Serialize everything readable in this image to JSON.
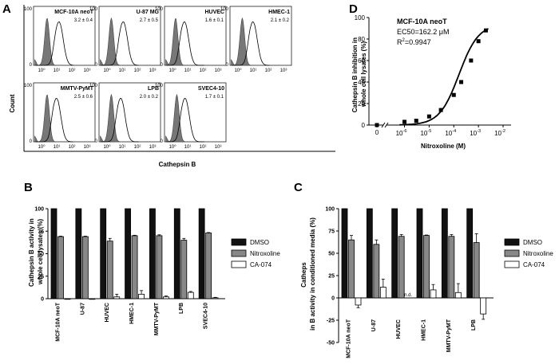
{
  "panels": {
    "A": "A",
    "B": "B",
    "C": "C",
    "D": "D"
  },
  "panel_a": {
    "ylabel": "Count",
    "xlabel": "Cathepsin B",
    "cells": [
      {
        "name": "MCF-10A neoT",
        "value": "3.2 ± 0.4"
      },
      {
        "name": "U-87 MG",
        "value": "2.7 ± 0.5"
      },
      {
        "name": "HUVEC",
        "value": "1.6 ± 0.1"
      },
      {
        "name": "HMEC-1",
        "value": "2.1 ± 0.2"
      },
      {
        "name": "MMTV-PyMT",
        "value": "2.5 ± 0.6"
      },
      {
        "name": "LPB",
        "value": "2.0 ± 0.2"
      },
      {
        "name": "SVEC4-10",
        "value": "1.7 ± 0.1"
      }
    ],
    "ytick_top": "100",
    "ytick_bottom": "0",
    "xticks": [
      "10⁰",
      "10¹",
      "10²",
      "10³"
    ]
  },
  "chart_data": [
    {
      "type": "bar",
      "panel": "B",
      "categories": [
        "MCF-10A neoT",
        "U-87",
        "HUVEC",
        "HMEC-1",
        "MMTV-PyMT",
        "LPB",
        "SVEC4-10"
      ],
      "series": [
        {
          "name": "DMSO",
          "color": "#111111",
          "values": [
            100,
            100,
            100,
            100,
            100,
            100,
            100
          ],
          "errors": [
            0,
            0,
            0,
            0,
            0,
            0,
            0
          ]
        },
        {
          "name": "Nitroxoline",
          "color": "#888888",
          "values": [
            69,
            69,
            64,
            70,
            70,
            65,
            73
          ],
          "errors": [
            0.5,
            0.5,
            3,
            0.5,
            1,
            2,
            0.5
          ]
        },
        {
          "name": "CA-074",
          "color": "#ffffff",
          "values": [
            0,
            0,
            2,
            5,
            2,
            7,
            1
          ],
          "errors": [
            0,
            0,
            3,
            4,
            1,
            1,
            0.5
          ]
        }
      ],
      "ylabel": "Cathepsin B activity in whole cell lysates (%)",
      "ylim": [
        0,
        100
      ],
      "yticks": [
        0,
        25,
        50,
        75,
        100
      ]
    },
    {
      "type": "bar",
      "panel": "C",
      "categories": [
        "MCF-10A neoT",
        "U-87",
        "HUVEC",
        "HMEC-1",
        "MMTV-PyMT",
        "LPB"
      ],
      "series": [
        {
          "name": "DMSO",
          "color": "#111111",
          "values": [
            100,
            100,
            100,
            100,
            100,
            100
          ],
          "errors": [
            0,
            0,
            0,
            0,
            0,
            0
          ]
        },
        {
          "name": "Nitroxoline",
          "color": "#888888",
          "values": [
            65,
            60,
            69,
            70,
            69,
            62
          ],
          "errors": [
            5,
            5,
            2,
            0.5,
            2,
            10
          ]
        },
        {
          "name": "CA-074",
          "color": "#ffffff",
          "values": [
            -8,
            12,
            null,
            9,
            6,
            -18
          ],
          "errors": [
            3,
            9,
            0,
            6,
            10,
            6
          ]
        }
      ],
      "na_label": "n.d.",
      "ylabel": "Cathepsin B activity in conditioned media (%)",
      "ylim": [
        -50,
        100
      ],
      "yticks": [
        -50,
        -25,
        0,
        25,
        50,
        75,
        100
      ]
    },
    {
      "type": "scatter",
      "panel": "D",
      "series": [
        {
          "name": "MCF-10A neoT",
          "x": [
            0,
            1e-06,
            3e-06,
            1e-05,
            3e-05,
            0.0001,
            0.0002,
            0.0005,
            0.001,
            0.002
          ],
          "y": [
            0,
            3,
            4,
            8,
            14,
            28,
            40,
            60,
            78,
            88
          ]
        }
      ],
      "title": "MCF-10A neoT",
      "annotations": [
        "EC50=162.2 μM"
      ],
      "r2_label": "R",
      "r2_sup": "2",
      "r2_value": "=0.9947",
      "xlabel": "Nitroxoline (M)",
      "ylabel": "Cathepsin B inhibition in whole cell lysates (%)",
      "ylim": [
        0,
        100
      ],
      "yticks": [
        0,
        20,
        40,
        60,
        80,
        100
      ],
      "xtick_base": "10",
      "xtick_exps": [
        "-6",
        "-5",
        "-4",
        "-3",
        "-2"
      ],
      "xtick_zero": "0",
      "x_scale": "log with broken axis at 0"
    }
  ]
}
